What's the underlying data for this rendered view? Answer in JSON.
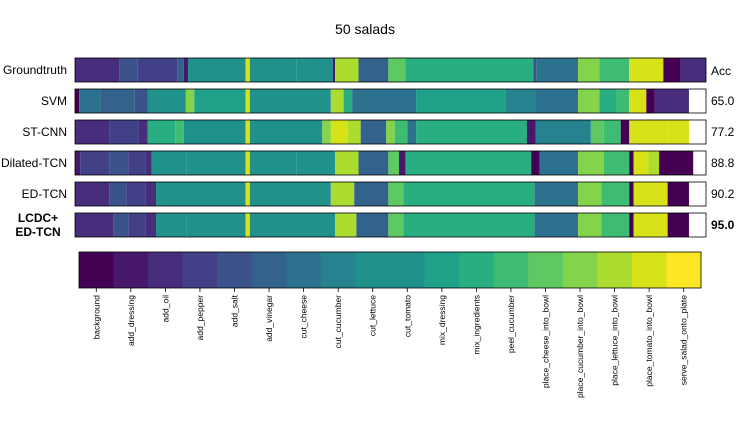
{
  "chart_data": {
    "type": "heatmap",
    "title": "50 salads",
    "acc_header": "Acc",
    "colors": [
      "#440154",
      "#48186a",
      "#472d7b",
      "#424086",
      "#3b528b",
      "#33638d",
      "#2c728e",
      "#26828e",
      "#21918c",
      "#1fa088",
      "#28ae80",
      "#3fbc73",
      "#5ec962",
      "#84d44b",
      "#addc30",
      "#d8e219",
      "#fde725"
    ],
    "classes": [
      "background",
      "add_dressing",
      "add_oil",
      "add_pepper",
      "add_salt",
      "add_vinegar",
      "cut_cheese",
      "cut_cucumber",
      "cut_lettuce",
      "cut_tomato",
      "mix_dressing",
      "mix_ingredients",
      "peel_cucumber",
      "place_cheese_into_bowl",
      "place_cucumber_into_bowl",
      "place_lettuce_into_bowl",
      "place_tomato_into_bowl",
      "serve_salad_onto_plate"
    ],
    "rows": [
      {
        "name": "Groundtruth",
        "acc": "",
        "bold": false,
        "segments": [
          [
            0,
            0.105,
            2
          ],
          [
            0.105,
            0.147,
            4
          ],
          [
            0.147,
            0.17,
            3
          ],
          [
            0.17,
            0.24,
            3
          ],
          [
            0.24,
            0.255,
            5
          ],
          [
            0.255,
            0.265,
            1
          ],
          [
            0.265,
            0.4,
            9
          ],
          [
            0.4,
            0.41,
            16
          ],
          [
            0.41,
            0.52,
            9
          ],
          [
            0.52,
            0.605,
            9
          ],
          [
            0.605,
            0.61,
            1
          ],
          [
            0.61,
            0.665,
            15
          ],
          [
            0.665,
            0.735,
            5
          ],
          [
            0.735,
            0.775,
            13
          ],
          [
            0.775,
            1.075,
            11
          ],
          [
            1.075,
            1.082,
            4
          ],
          [
            1.082,
            1.18,
            6
          ],
          [
            1.18,
            1.23,
            14
          ],
          [
            1.23,
            1.3,
            12
          ],
          [
            1.3,
            1.38,
            16
          ],
          [
            1.38,
            1.42,
            0
          ],
          [
            1.42,
            1.48,
            2
          ]
        ]
      },
      {
        "name": "SVM",
        "acc": "65.0",
        "bold": false,
        "segments": [
          [
            0,
            0.01,
            0
          ],
          [
            0.01,
            0.06,
            6
          ],
          [
            0.06,
            0.14,
            5
          ],
          [
            0.14,
            0.17,
            4
          ],
          [
            0.17,
            0.26,
            9
          ],
          [
            0.26,
            0.28,
            14
          ],
          [
            0.28,
            0.4,
            10
          ],
          [
            0.4,
            0.41,
            16
          ],
          [
            0.41,
            0.6,
            9
          ],
          [
            0.6,
            0.63,
            15
          ],
          [
            0.63,
            0.65,
            11
          ],
          [
            0.65,
            0.8,
            6
          ],
          [
            0.8,
            1.01,
            10
          ],
          [
            1.01,
            1.08,
            7
          ],
          [
            1.08,
            1.18,
            6
          ],
          [
            1.18,
            1.23,
            14
          ],
          [
            1.23,
            1.27,
            11
          ],
          [
            1.27,
            1.3,
            12
          ],
          [
            1.3,
            1.34,
            16
          ],
          [
            1.34,
            1.36,
            0
          ],
          [
            1.36,
            1.44,
            2
          ]
        ]
      },
      {
        "name": "ST-CNN",
        "acc": "77.2",
        "bold": false,
        "segments": [
          [
            0,
            0.08,
            2
          ],
          [
            0.08,
            0.15,
            3
          ],
          [
            0.15,
            0.17,
            2
          ],
          [
            0.17,
            0.235,
            11
          ],
          [
            0.235,
            0.255,
            12
          ],
          [
            0.255,
            0.4,
            9
          ],
          [
            0.4,
            0.41,
            16
          ],
          [
            0.41,
            0.58,
            9
          ],
          [
            0.58,
            0.6,
            14
          ],
          [
            0.6,
            0.64,
            16
          ],
          [
            0.64,
            0.67,
            15
          ],
          [
            0.67,
            0.73,
            5
          ],
          [
            0.73,
            0.75,
            14
          ],
          [
            0.75,
            0.78,
            12
          ],
          [
            0.78,
            0.8,
            6
          ],
          [
            0.8,
            1.06,
            11
          ],
          [
            1.06,
            1.08,
            1
          ],
          [
            1.08,
            1.21,
            7
          ],
          [
            1.21,
            1.24,
            13
          ],
          [
            1.24,
            1.28,
            12
          ],
          [
            1.28,
            1.3,
            0
          ],
          [
            1.3,
            1.39,
            16
          ],
          [
            1.39,
            1.44,
            16
          ]
        ]
      },
      {
        "name": "Dilated-TCN",
        "acc": "88.8",
        "bold": false,
        "segments": [
          [
            0,
            0.012,
            1
          ],
          [
            0.012,
            0.08,
            3
          ],
          [
            0.08,
            0.125,
            4
          ],
          [
            0.125,
            0.165,
            3
          ],
          [
            0.165,
            0.18,
            2
          ],
          [
            0.18,
            0.262,
            9
          ],
          [
            0.262,
            0.4,
            9
          ],
          [
            0.4,
            0.41,
            16
          ],
          [
            0.41,
            0.52,
            9
          ],
          [
            0.52,
            0.61,
            9
          ],
          [
            0.61,
            0.665,
            15
          ],
          [
            0.665,
            0.735,
            5
          ],
          [
            0.735,
            0.76,
            13
          ],
          [
            0.76,
            0.775,
            1
          ],
          [
            0.775,
            1.07,
            11
          ],
          [
            1.07,
            1.09,
            0
          ],
          [
            1.09,
            1.18,
            6
          ],
          [
            1.18,
            1.24,
            14
          ],
          [
            1.24,
            1.3,
            12
          ],
          [
            1.3,
            1.31,
            0
          ],
          [
            1.31,
            1.345,
            16
          ],
          [
            1.345,
            1.37,
            15
          ],
          [
            1.37,
            1.45,
            0
          ]
        ]
      },
      {
        "name": "ED-TCN",
        "acc": "90.2",
        "bold": false,
        "segments": [
          [
            0,
            0.08,
            2
          ],
          [
            0.08,
            0.12,
            4
          ],
          [
            0.12,
            0.165,
            3
          ],
          [
            0.165,
            0.19,
            2
          ],
          [
            0.19,
            0.265,
            9
          ],
          [
            0.265,
            0.4,
            9
          ],
          [
            0.4,
            0.41,
            16
          ],
          [
            0.41,
            0.6,
            9
          ],
          [
            0.6,
            0.655,
            15
          ],
          [
            0.655,
            0.735,
            5
          ],
          [
            0.735,
            0.77,
            13
          ],
          [
            0.77,
            1.078,
            11
          ],
          [
            1.078,
            1.18,
            6
          ],
          [
            1.18,
            1.235,
            14
          ],
          [
            1.235,
            1.3,
            12
          ],
          [
            1.3,
            1.31,
            0
          ],
          [
            1.31,
            1.39,
            16
          ],
          [
            1.39,
            1.44,
            0
          ]
        ]
      },
      {
        "name": "LCDC+\nED-TCN",
        "acc": "95.0",
        "bold": true,
        "segments": [
          [
            0,
            0.09,
            2
          ],
          [
            0.09,
            0.125,
            4
          ],
          [
            0.125,
            0.165,
            3
          ],
          [
            0.165,
            0.19,
            2
          ],
          [
            0.19,
            0.262,
            9
          ],
          [
            0.262,
            0.4,
            9
          ],
          [
            0.4,
            0.41,
            16
          ],
          [
            0.41,
            0.61,
            9
          ],
          [
            0.61,
            0.66,
            15
          ],
          [
            0.66,
            0.735,
            5
          ],
          [
            0.735,
            0.77,
            13
          ],
          [
            0.77,
            1.078,
            11
          ],
          [
            1.078,
            1.18,
            6
          ],
          [
            1.18,
            1.235,
            14
          ],
          [
            1.235,
            1.3,
            12
          ],
          [
            1.3,
            1.31,
            0
          ],
          [
            1.31,
            1.39,
            16
          ],
          [
            1.39,
            1.44,
            0
          ]
        ]
      }
    ]
  }
}
